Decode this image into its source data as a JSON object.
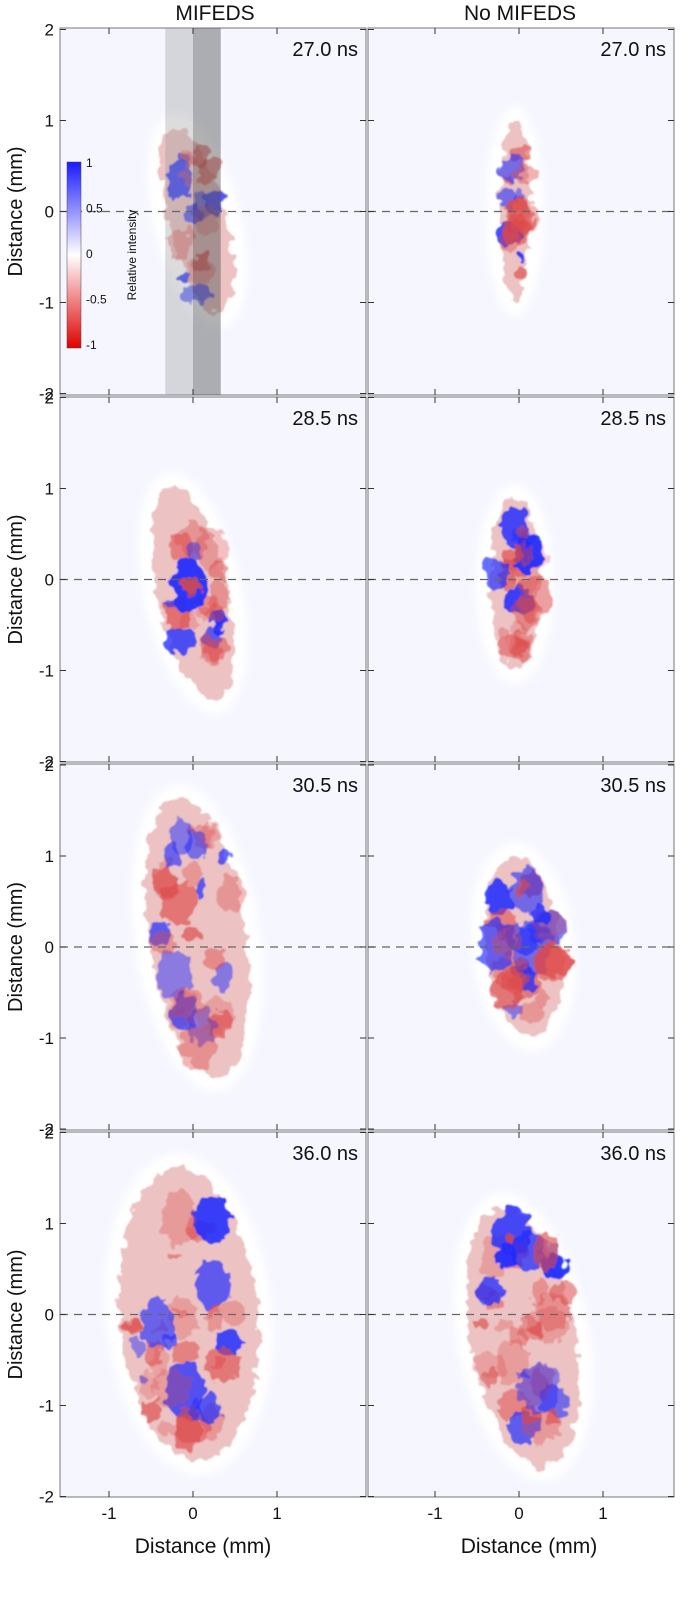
{
  "columns": [
    "MIFEDS",
    "No MIFEDS"
  ],
  "ylabel": "Distance (mm)",
  "xlabel": "Distance (mm)",
  "y_ticks": [
    "2",
    "1",
    "0",
    "-1",
    "-2"
  ],
  "x_ticks": [
    "-1",
    "0",
    "1"
  ],
  "rows": [
    {
      "time": "27.0 ns"
    },
    {
      "time": "28.5 ns"
    },
    {
      "time": "30.5 ns"
    },
    {
      "time": "36.0 ns"
    }
  ],
  "colorbar": {
    "label": "Relative intensity",
    "ticks": [
      "1",
      "0.5",
      "0",
      "-0.5",
      "-1"
    ],
    "max_color": "#1a1aff",
    "mid_color": "#ffffff",
    "min_color": "#e00000"
  },
  "colors": {
    "panel_background": "#f5f6ff",
    "positive": "#1f2bff",
    "negative": "#dd4848",
    "dashed_line": "#666666"
  }
}
